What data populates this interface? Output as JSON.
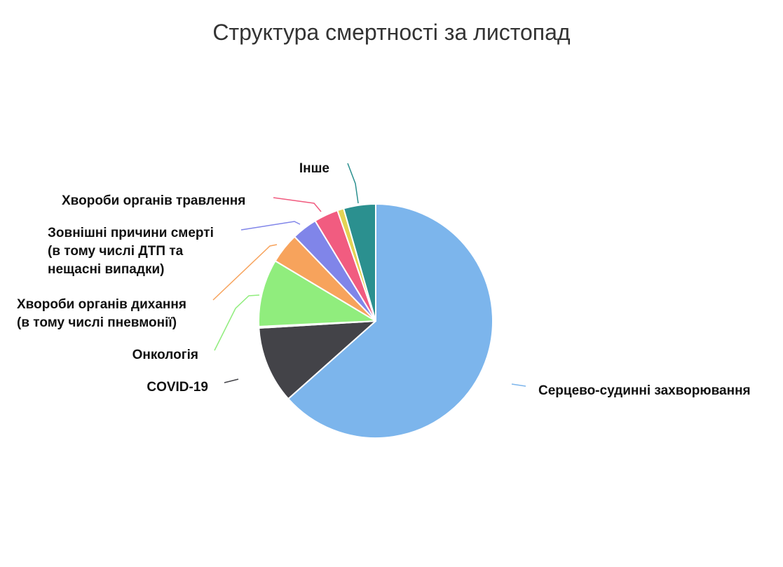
{
  "chart_data": {
    "type": "pie",
    "title": "Структура смертності за листопад",
    "start_angle_deg": 0,
    "direction": "clockwise",
    "slices": [
      {
        "label": [
          "Серцево-судинні захворювання"
        ],
        "value": 64.5,
        "color": "#7cb5ec"
      },
      {
        "label": [
          "COVID-19"
        ],
        "value": 10.8,
        "color": "#434348"
      },
      {
        "label": [
          "Онкологія"
        ],
        "value": 0.2,
        "color": "#90ed7d"
      },
      {
        "label": [
          "Хвороби органів дихання",
          "(в тому числі пневмонії)"
        ],
        "value": 9.5,
        "color": "#90ed7d"
      },
      {
        "label": [
          "Зовнішні причини смерті",
          "(в тому числі ДТП та",
          "нещасні випадки)"
        ],
        "value": 4.3,
        "color": "#f7a35c"
      },
      {
        "label": [
          "Хвороби органів травлення"
        ],
        "value": 3.6,
        "color": "#8085e9"
      },
      {
        "label": [
          ""
        ],
        "value": 3.4,
        "color": "#f15c80"
      },
      {
        "label": [
          ""
        ],
        "value": 0.9,
        "color": "#e4d354"
      },
      {
        "label": [
          "Інше"
        ],
        "value": 4.5,
        "color": "#2b908f"
      }
    ]
  }
}
